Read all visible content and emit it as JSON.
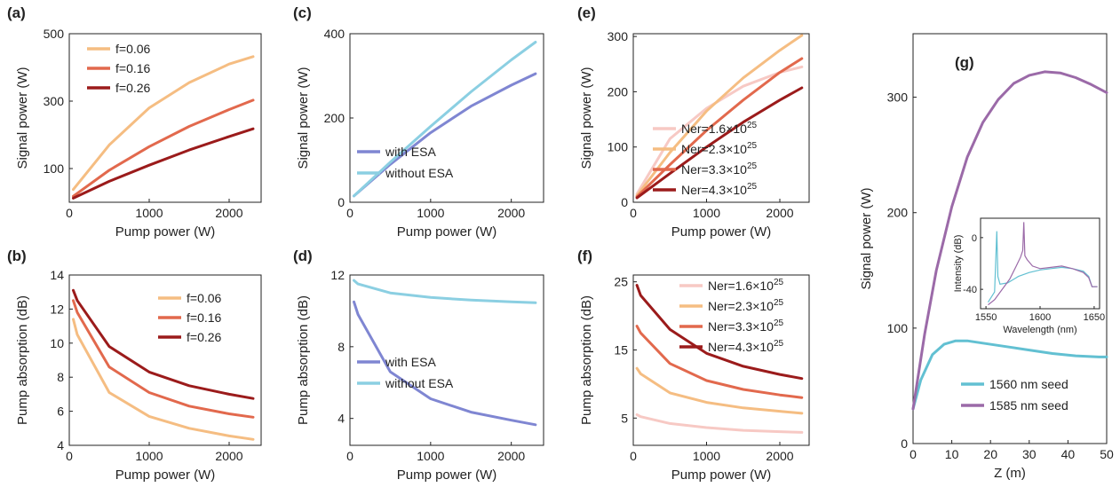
{
  "chart_data": [
    {
      "panel": "(a)",
      "type": "line",
      "xlabel": "Pump power (W)",
      "ylabel": "Signal power (W)",
      "xlim": [
        0,
        2400
      ],
      "ylim": [
        0,
        500
      ],
      "xticks": [
        "0",
        "1000",
        "2000"
      ],
      "yticks": [
        "100",
        "300",
        "500"
      ],
      "legend_position": "top-left",
      "series": [
        {
          "name": "f=0.06",
          "color": "#f5bd82",
          "x": [
            50,
            500,
            1000,
            1500,
            2000,
            2300
          ],
          "y": [
            38,
            170,
            280,
            355,
            410,
            432
          ]
        },
        {
          "name": "f=0.16",
          "color": "#e2694d",
          "x": [
            50,
            500,
            1000,
            1500,
            2000,
            2300
          ],
          "y": [
            18,
            95,
            165,
            225,
            275,
            303
          ]
        },
        {
          "name": "f=0.26",
          "color": "#9b1b1b",
          "x": [
            50,
            500,
            1000,
            1500,
            2000,
            2300
          ],
          "y": [
            12,
            62,
            110,
            155,
            195,
            218
          ]
        }
      ]
    },
    {
      "panel": "(b)",
      "type": "line",
      "xlabel": "Pump power (W)",
      "ylabel": "Pump absorption  (dB)",
      "xlim": [
        0,
        2400
      ],
      "ylim": [
        4,
        14
      ],
      "xticks": [
        "0",
        "1000",
        "2000"
      ],
      "yticks": [
        "4",
        "6",
        "8",
        "10",
        "12",
        "14"
      ],
      "legend_position": "top-right",
      "series": [
        {
          "name": "f=0.06",
          "color": "#f5bd82",
          "x": [
            50,
            100,
            500,
            1000,
            1500,
            2000,
            2300
          ],
          "y": [
            11.4,
            10.5,
            7.1,
            5.7,
            5.0,
            4.55,
            4.35
          ]
        },
        {
          "name": "f=0.16",
          "color": "#e2694d",
          "x": [
            50,
            100,
            500,
            1000,
            1500,
            2000,
            2300
          ],
          "y": [
            12.5,
            11.8,
            8.6,
            7.1,
            6.3,
            5.85,
            5.65
          ]
        },
        {
          "name": "f=0.26",
          "color": "#9b1b1b",
          "x": [
            50,
            100,
            500,
            1000,
            1500,
            2000,
            2300
          ],
          "y": [
            13.1,
            12.5,
            9.8,
            8.3,
            7.5,
            7.0,
            6.75
          ]
        }
      ]
    },
    {
      "panel": "(c)",
      "type": "line",
      "xlabel": "Pump power (W)",
      "ylabel": "Signal power (W)",
      "xlim": [
        0,
        2400
      ],
      "ylim": [
        0,
        400
      ],
      "xticks": [
        "0",
        "1000",
        "2000"
      ],
      "yticks": [
        "0",
        "200",
        "400"
      ],
      "legend_position": "bottom-right",
      "series": [
        {
          "name": "with ESA",
          "color": "#7f86d2",
          "x": [
            50,
            500,
            1000,
            1500,
            2000,
            2300
          ],
          "y": [
            15,
            90,
            165,
            228,
            278,
            305
          ]
        },
        {
          "name": "without ESA",
          "color": "#8bcfe2",
          "x": [
            50,
            500,
            1000,
            1500,
            2000,
            2300
          ],
          "y": [
            15,
            95,
            180,
            262,
            338,
            380
          ]
        }
      ]
    },
    {
      "panel": "(d)",
      "type": "line",
      "xlabel": "Pump power (W)",
      "ylabel": "Pump absorption  (dB)",
      "xlim": [
        0,
        2400
      ],
      "ylim": [
        2.5,
        12
      ],
      "xticks": [
        "0",
        "1000",
        "2000"
      ],
      "yticks": [
        "4",
        "8",
        "12"
      ],
      "legend_position": "center-right",
      "series": [
        {
          "name": "with ESA",
          "color": "#7f86d2",
          "x": [
            50,
            100,
            500,
            1000,
            1500,
            2000,
            2300
          ],
          "y": [
            10.5,
            9.8,
            6.6,
            5.1,
            4.35,
            3.9,
            3.65
          ]
        },
        {
          "name": "without ESA",
          "color": "#8bcfe2",
          "x": [
            50,
            100,
            500,
            1000,
            1500,
            2000,
            2300
          ],
          "y": [
            11.7,
            11.5,
            11.0,
            10.75,
            10.6,
            10.5,
            10.45
          ]
        }
      ]
    },
    {
      "panel": "(e)",
      "type": "line",
      "xlabel": "Pump power (W)",
      "ylabel": "Signal power (W)",
      "xlim": [
        0,
        2400
      ],
      "ylim": [
        0,
        305
      ],
      "xticks": [
        "0",
        "1000",
        "2000"
      ],
      "yticks": [
        "0",
        "100",
        "200",
        "300"
      ],
      "legend_position": "bottom-right",
      "series": [
        {
          "name": "Ner=1.6×10",
          "sup": "25",
          "color": "#f7c9c4",
          "x": [
            50,
            500,
            1000,
            1500,
            2000,
            2300
          ],
          "y": [
            15,
            115,
            170,
            210,
            235,
            245
          ]
        },
        {
          "name": "Ner=2.3×10",
          "sup": "25",
          "color": "#f5bd82",
          "x": [
            50,
            500,
            1000,
            1500,
            2000,
            2300
          ],
          "y": [
            12,
            90,
            165,
            225,
            275,
            302
          ]
        },
        {
          "name": "Ner=3.3×10",
          "sup": "25",
          "color": "#e2694d",
          "x": [
            50,
            500,
            1000,
            1500,
            2000,
            2300
          ],
          "y": [
            10,
            68,
            130,
            185,
            235,
            260
          ]
        },
        {
          "name": "Ner=4.3×10",
          "sup": "25",
          "color": "#9b1b1b",
          "x": [
            50,
            500,
            1000,
            1500,
            2000,
            2300
          ],
          "y": [
            8,
            52,
            100,
            145,
            185,
            207
          ]
        }
      ]
    },
    {
      "panel": "(f)",
      "type": "line",
      "xlabel": "Pump power (W)",
      "ylabel": "Pump absorption  (dB)",
      "xlim": [
        0,
        2400
      ],
      "ylim": [
        1,
        26
      ],
      "xticks": [
        "0",
        "1000",
        "2000"
      ],
      "yticks": [
        "5",
        "15",
        "25"
      ],
      "legend_position": "top-right",
      "series": [
        {
          "name": "Ner=1.6×10",
          "sup": "25",
          "color": "#f7c9c4",
          "x": [
            50,
            100,
            500,
            1000,
            1500,
            2000,
            2300
          ],
          "y": [
            5.5,
            5.2,
            4.2,
            3.6,
            3.2,
            3.0,
            2.9
          ]
        },
        {
          "name": "Ner=2.3×10",
          "sup": "25",
          "color": "#f5bd82",
          "x": [
            50,
            100,
            500,
            1000,
            1500,
            2000,
            2300
          ],
          "y": [
            12.3,
            11.5,
            8.7,
            7.3,
            6.5,
            6.0,
            5.7
          ]
        },
        {
          "name": "Ner=3.3×10",
          "sup": "25",
          "color": "#e2694d",
          "x": [
            50,
            100,
            500,
            1000,
            1500,
            2000,
            2300
          ],
          "y": [
            18.5,
            17.5,
            13.0,
            10.5,
            9.2,
            8.4,
            8.0
          ]
        },
        {
          "name": "Ner=4.3×10",
          "sup": "25",
          "color": "#9b1b1b",
          "x": [
            50,
            100,
            500,
            1000,
            1500,
            2000,
            2300
          ],
          "y": [
            24.5,
            23.0,
            18.0,
            14.5,
            12.6,
            11.4,
            10.8
          ]
        }
      ]
    },
    {
      "panel": "(g)",
      "type": "line",
      "xlabel": "Z (m)",
      "ylabel": "Signal power (W)",
      "xlim": [
        0,
        50
      ],
      "ylim": [
        0,
        355
      ],
      "xticks": [
        "0",
        "10",
        "20",
        "30",
        "40",
        "50"
      ],
      "yticks": [
        "0",
        "100",
        "200",
        "300"
      ],
      "legend_position": "bottom-right",
      "series": [
        {
          "name": "1560 nm seed",
          "color": "#62c0d2",
          "x": [
            0,
            2,
            5,
            8,
            11,
            14,
            18,
            24,
            30,
            36,
            42,
            48,
            50
          ],
          "y": [
            30,
            55,
            77,
            86,
            89,
            89,
            87,
            84,
            81,
            78,
            76,
            75,
            75
          ]
        },
        {
          "name": "1585 nm seed",
          "color": "#9b6aa8",
          "x": [
            0,
            3,
            6,
            10,
            14,
            18,
            22,
            26,
            30,
            34,
            38,
            42,
            46,
            50
          ],
          "y": [
            30,
            95,
            150,
            205,
            248,
            278,
            298,
            312,
            319,
            322,
            321,
            317,
            311,
            304
          ]
        }
      ],
      "inset": {
        "xlabel": "Wavelength (nm)",
        "ylabel": "Intensity (dB)",
        "xlim": [
          1545,
          1655
        ],
        "ylim": [
          -55,
          15
        ],
        "xticks": [
          "1550",
          "1600",
          "1650"
        ],
        "yticks": [
          "0",
          "-40"
        ],
        "series": [
          {
            "name": "1560 nm seed",
            "color": "#62c0d2",
            "x": [
              1552,
              1558,
              1560,
              1561,
              1563,
              1570,
              1580,
              1590,
              1600,
              1610,
              1620,
              1630,
              1640,
              1645,
              1648,
              1653
            ],
            "y": [
              -50,
              -42,
              5,
              -30,
              -36,
              -35,
              -30,
              -27,
              -25,
              -24,
              -23,
              -24,
              -26,
              -30,
              -38,
              -38
            ]
          },
          {
            "name": "1585 nm seed",
            "color": "#9b6aa8",
            "x": [
              1552,
              1558,
              1565,
              1572,
              1578,
              1582,
              1584,
              1585,
              1586,
              1588,
              1593,
              1600,
              1610,
              1620,
              1630,
              1640,
              1645,
              1648,
              1653
            ],
            "y": [
              -52,
              -48,
              -40,
              -32,
              -22,
              -15,
              -10,
              12,
              -14,
              -17,
              -22,
              -24,
              -23,
              -22,
              -24,
              -27,
              -31,
              -38,
              -38
            ]
          }
        ]
      }
    }
  ],
  "panels": [
    {
      "label": "(a)"
    },
    {
      "label": "(b)"
    },
    {
      "label": "(c)"
    },
    {
      "label": "(d)"
    },
    {
      "label": "(e)"
    },
    {
      "label": "(f)"
    },
    {
      "label": "(g)"
    }
  ]
}
